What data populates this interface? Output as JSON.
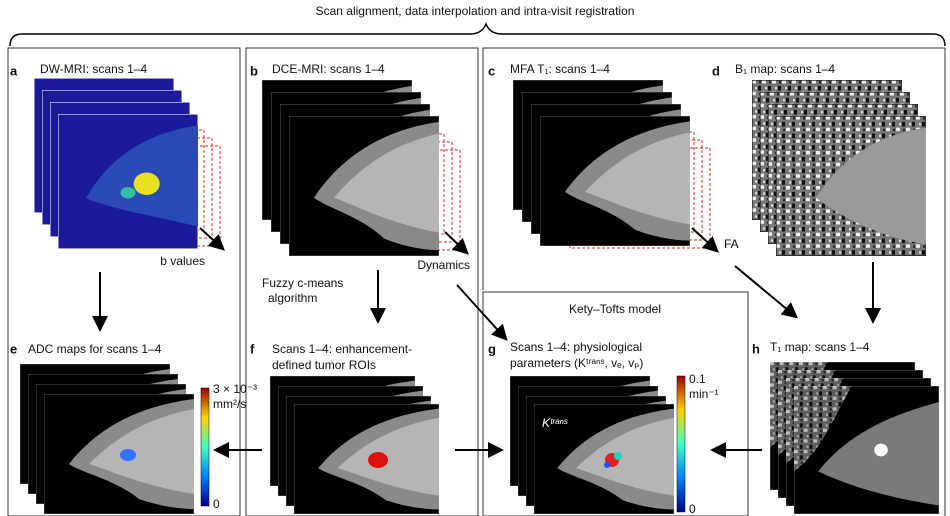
{
  "header": {
    "title": "Scan alignment, data interpolation and intra-visit registration"
  },
  "panels": {
    "a": {
      "label": "a",
      "title": "DW-MRI: scans 1–4",
      "axis": "b values"
    },
    "b": {
      "label": "b",
      "title": "DCE-MRI: scans 1–4",
      "axis": "Dynamics"
    },
    "c": {
      "label": "c",
      "title": "MFA T₁: scans 1–4",
      "axis": "FA"
    },
    "d": {
      "label": "d",
      "title": "B₁ map: scans 1–4"
    },
    "e": {
      "label": "e",
      "title": "ADC maps for scans 1–4",
      "colorbar_max": "3 × 10⁻³",
      "colorbar_unit": "mm²/s",
      "colorbar_min": "0"
    },
    "f": {
      "label": "f",
      "title_lines": [
        "Scans 1–4: enhancement-",
        "defined tumor ROIs"
      ]
    },
    "g": {
      "label": "g",
      "title_lines": [
        "Scans 1–4: physiological",
        "parameters (Kᵗʳᵃⁿˢ, vₑ, vₚ)"
      ],
      "image_label": "Kᵗʳᵃⁿˢ",
      "colorbar_max": "0.1",
      "colorbar_unit": "min⁻¹",
      "colorbar_min": "0"
    },
    "h": {
      "label": "h",
      "title": "T₁ map: scans 1–4"
    }
  },
  "steps": {
    "fuzzy": [
      "Fuzzy c-means",
      "algorithm"
    ],
    "model": "Kety–Tofts model"
  }
}
